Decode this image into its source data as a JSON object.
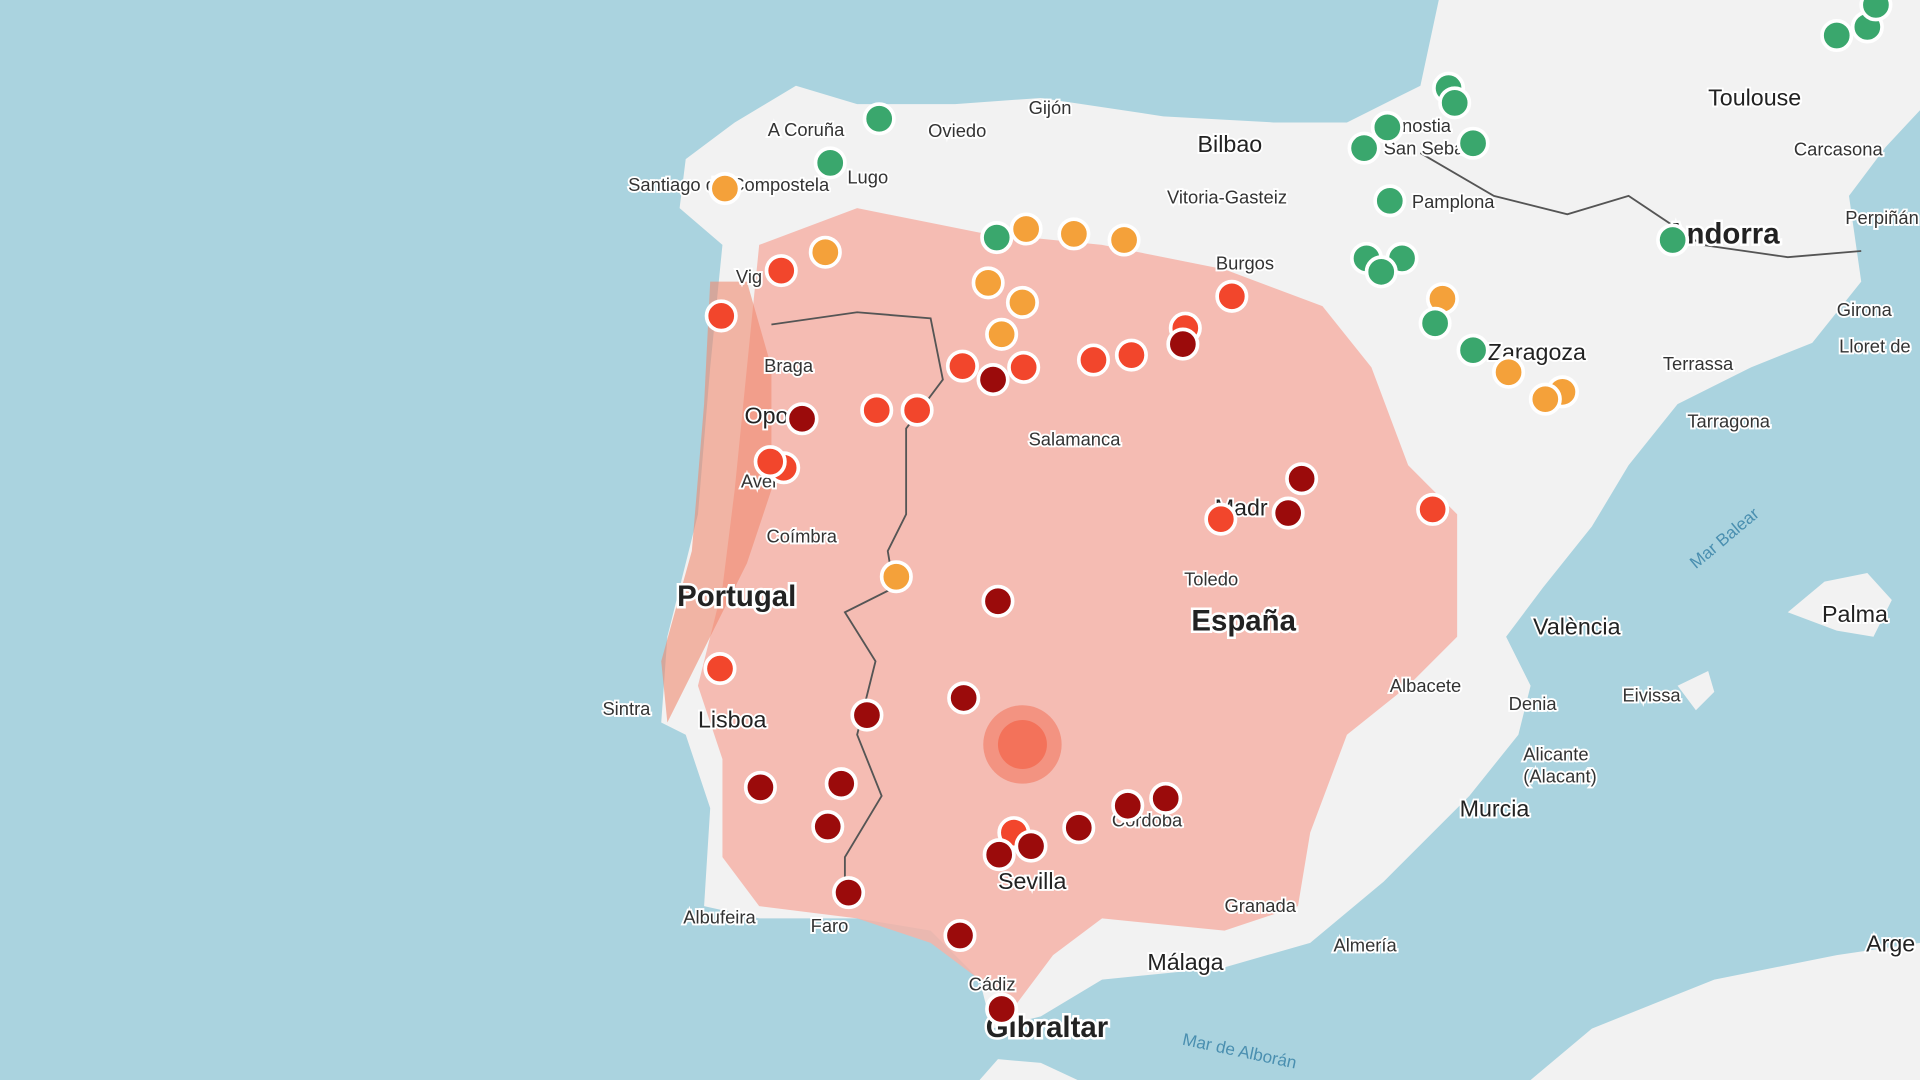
{
  "map": {
    "countries": [
      "Portugal",
      "España",
      "Gibraltar"
    ],
    "cities": [
      "A Coruña",
      "Gijón",
      "Oviedo",
      "Lugo",
      "Santiago de Compostela",
      "Bilbao",
      "Vitoria-Gasteiz",
      "Burgos",
      "Pamplona",
      "Toulouse",
      "Carcasona",
      "Perpiñán",
      "Andorra",
      "Girona",
      "Lloret de",
      "Zaragoza",
      "Terrassa",
      "Tarragona",
      "Vig",
      "Braga",
      "Opo",
      "Avei",
      "Salamanca",
      "Coímbra",
      "Madr",
      "Toledo",
      "València",
      "Palma",
      "Eivissa",
      "Albacete",
      "Denia",
      "Alicante\n(Alacant)",
      "Murcia",
      "Sintra",
      "Lisboa",
      "Sevilla",
      "Córdoba",
      "Granada",
      "Málaga",
      "Almería",
      "Albufeira",
      "Faro",
      "Cádiz",
      "Arge",
      "nostia",
      "San Seba"
    ],
    "seas": [
      "Mar Balear",
      "Mar de Alborán"
    ]
  }
}
